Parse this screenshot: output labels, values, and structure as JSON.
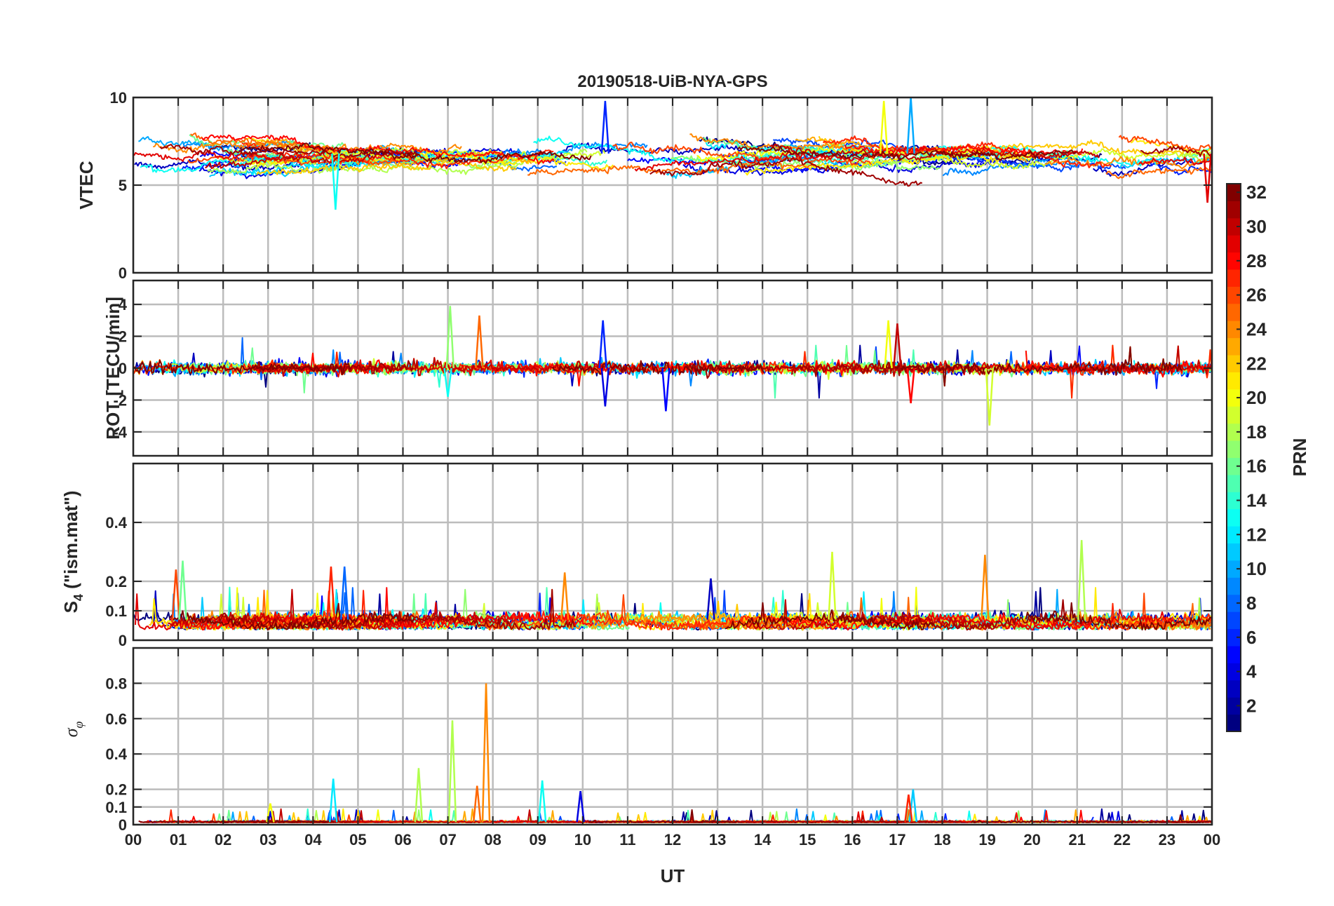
{
  "figure": {
    "title": "20190518-UiB-NYA-GPS",
    "x_axis": {
      "label": "UT",
      "ticks": [
        "00",
        "01",
        "02",
        "03",
        "04",
        "05",
        "06",
        "07",
        "08",
        "09",
        "10",
        "11",
        "12",
        "13",
        "14",
        "15",
        "16",
        "17",
        "18",
        "19",
        "20",
        "21",
        "22",
        "23",
        "00"
      ],
      "range_hours": [
        0,
        24
      ]
    },
    "colorbar": {
      "label": "PRN",
      "ticks": [
        "2",
        "4",
        "6",
        "8",
        "10",
        "12",
        "14",
        "16",
        "18",
        "20",
        "22",
        "24",
        "26",
        "28",
        "30",
        "32"
      ],
      "range": [
        1,
        32
      ],
      "colormap": "jet"
    }
  },
  "chart_data": [
    {
      "type": "line",
      "panel": "vtec",
      "ylabel": "VTEC",
      "ylim": [
        0,
        10
      ],
      "yticks": [
        0,
        5,
        10
      ],
      "ytick_labels": [
        "0",
        "5",
        "10"
      ],
      "grid": true,
      "series_note": "one trace per PRN 1-32, coloured by PRN",
      "typical_range": [
        4.5,
        9.5
      ],
      "spikes": [
        {
          "x": 10.5,
          "y": 9.8,
          "prn": 6
        },
        {
          "x": 16.7,
          "y": 9.8,
          "prn": 20
        },
        {
          "x": 17.3,
          "y": 10.0,
          "prn": 10
        },
        {
          "x": 4.5,
          "y": 3.6,
          "prn": 13
        },
        {
          "x": 23.9,
          "y": 4.0,
          "prn": 29
        }
      ]
    },
    {
      "type": "line",
      "panel": "rot",
      "ylabel": "ROT [TECU/min]",
      "ylim": [
        -5.5,
        5.5
      ],
      "yticks": [
        -4,
        -2,
        0,
        2,
        4
      ],
      "ytick_labels": [
        "-4",
        "-2",
        "0",
        "2",
        "4"
      ],
      "grid": true,
      "series_note": "one trace per PRN 1-32, coloured by PRN",
      "spikes": [
        {
          "x": 7.05,
          "y": 3.9,
          "prn": 17
        },
        {
          "x": 7.7,
          "y": 3.3,
          "prn": 25
        },
        {
          "x": 10.45,
          "y": 3.0,
          "prn": 6
        },
        {
          "x": 10.5,
          "y": -2.4,
          "prn": 4
        },
        {
          "x": 11.85,
          "y": -2.7,
          "prn": 5
        },
        {
          "x": 16.8,
          "y": 3.0,
          "prn": 20
        },
        {
          "x": 17.0,
          "y": 2.8,
          "prn": 30
        },
        {
          "x": 19.05,
          "y": -3.6,
          "prn": 19
        },
        {
          "x": 17.3,
          "y": -2.2,
          "prn": 28
        },
        {
          "x": 7.0,
          "y": -1.8,
          "prn": 13
        }
      ]
    },
    {
      "type": "line",
      "panel": "s4",
      "ylabel": "S4 (\"ism.mat\")",
      "ylabel_parts": {
        "main": "S",
        "sub": "4",
        "rest": " (\"ism.mat\")"
      },
      "ylim": [
        0,
        0.6
      ],
      "yticks": [
        0,
        0.1,
        0.2,
        0.4
      ],
      "ytick_labels": [
        "0",
        "0.1",
        "0.2",
        "0.4"
      ],
      "grid": true,
      "series_note": "one trace per PRN 1-32, coloured by PRN",
      "typical_range": [
        0.03,
        0.12
      ],
      "spikes": [
        {
          "x": 0.95,
          "y": 0.24,
          "prn": 26
        },
        {
          "x": 1.1,
          "y": 0.27,
          "prn": 16
        },
        {
          "x": 4.4,
          "y": 0.25,
          "prn": 27
        },
        {
          "x": 4.7,
          "y": 0.25,
          "prn": 8
        },
        {
          "x": 15.55,
          "y": 0.3,
          "prn": 19
        },
        {
          "x": 18.95,
          "y": 0.29,
          "prn": 24
        },
        {
          "x": 21.1,
          "y": 0.34,
          "prn": 18
        },
        {
          "x": 12.85,
          "y": 0.21,
          "prn": 3
        },
        {
          "x": 9.6,
          "y": 0.23,
          "prn": 24
        }
      ]
    },
    {
      "type": "line",
      "panel": "sigma_phi",
      "ylabel": "σφ",
      "ylabel_parts": {
        "main": "σ",
        "sub": "φ"
      },
      "ylim": [
        0,
        1.0
      ],
      "yticks": [
        0,
        0.1,
        0.2,
        0.4,
        0.6,
        0.8
      ],
      "ytick_labels": [
        "0",
        "0.1",
        "0.2",
        "0.4",
        "0.6",
        "0.8"
      ],
      "grid": true,
      "series_note": "one trace per PRN 1-32, coloured by PRN",
      "typical_range": [
        0.0,
        0.04
      ],
      "spikes": [
        {
          "x": 7.85,
          "y": 0.8,
          "prn": 24
        },
        {
          "x": 7.1,
          "y": 0.59,
          "prn": 18
        },
        {
          "x": 6.35,
          "y": 0.32,
          "prn": 18
        },
        {
          "x": 4.45,
          "y": 0.26,
          "prn": 12
        },
        {
          "x": 9.1,
          "y": 0.25,
          "prn": 13
        },
        {
          "x": 7.65,
          "y": 0.22,
          "prn": 25
        },
        {
          "x": 17.35,
          "y": 0.2,
          "prn": 11
        },
        {
          "x": 17.25,
          "y": 0.17,
          "prn": 27
        },
        {
          "x": 9.95,
          "y": 0.19,
          "prn": 4
        },
        {
          "x": 3.05,
          "y": 0.12,
          "prn": 20
        }
      ]
    }
  ]
}
